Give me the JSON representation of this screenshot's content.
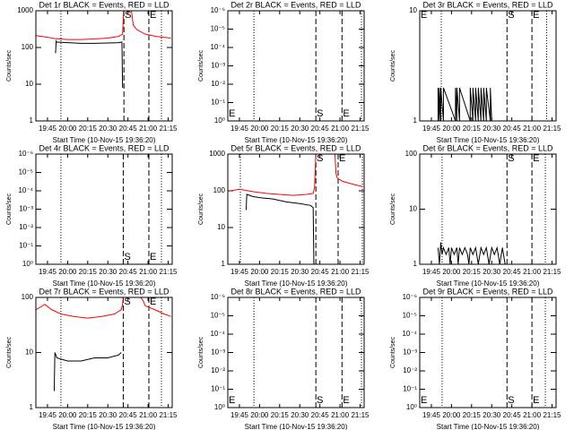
{
  "chart_data": [
    {
      "type": "line",
      "title": "Det 1r BLACK = Events, RED = LLD",
      "xlabel": "Start Time (10-Nov-15 19:36:20)",
      "ylabel": "Counts/sec",
      "log_y": true,
      "xlim": [
        1176.33,
        1278
      ],
      "xticks": [
        {
          "value": 1185,
          "label": "19:45"
        },
        {
          "value": 1200,
          "label": "20:00"
        },
        {
          "value": 1215,
          "label": "20:15"
        },
        {
          "value": 1230,
          "label": "20:30"
        },
        {
          "value": 1245,
          "label": "20:45"
        },
        {
          "value": 1260,
          "label": "21:00"
        },
        {
          "value": 1275,
          "label": "21:15"
        }
      ],
      "ylim": [
        1,
        1000
      ],
      "yticks": [
        1,
        10,
        100,
        1000
      ],
      "vlines": [
        {
          "x": 1195,
          "style": "dotted"
        },
        {
          "x": 1270,
          "style": "dotted"
        },
        {
          "x": 1242,
          "style": "dashed",
          "label": "S"
        },
        {
          "x": 1260.6,
          "style": "dashed",
          "label": "E"
        }
      ],
      "series": [
        {
          "color": "#ff0000",
          "x": [
            1176.5,
            1185,
            1190,
            1200,
            1210,
            1220,
            1230,
            1238,
            1241,
            1242,
            1247,
            1249,
            1252,
            1258,
            1266,
            1277
          ],
          "values": [
            210,
            190,
            175,
            165,
            165,
            170,
            180,
            200,
            230,
            1500,
            1500,
            400,
            300,
            230,
            200,
            180
          ]
        },
        {
          "color": "#000000",
          "x": [
            1191,
            1191.5,
            1192,
            1200,
            1210,
            1220,
            1230,
            1238,
            1240.5,
            1241
          ],
          "values": [
            70,
            150,
            140,
            135,
            130,
            130,
            132,
            135,
            140,
            8
          ]
        }
      ]
    },
    {
      "type": "line",
      "title": "Det 2r BLACK = Events, RED = LLD",
      "xlabel": "Start Time (10-Nov-15 19:36:20)",
      "ylabel": "Counts/sec",
      "log_y": true,
      "xlim": [
        1176.33,
        1278
      ],
      "xticks": [
        {
          "value": 1185,
          "label": "19:45"
        },
        {
          "value": 1200,
          "label": "20:00"
        },
        {
          "value": 1215,
          "label": "20:15"
        },
        {
          "value": 1230,
          "label": "20:30"
        },
        {
          "value": 1245,
          "label": "20:45"
        },
        {
          "value": 1260,
          "label": "21:00"
        },
        {
          "value": 1275,
          "label": "21:15"
        }
      ],
      "ylim": [
        1,
        1e-06
      ],
      "yticks": [
        {
          "value": 1,
          "label": "10⁰"
        },
        {
          "value": 0.1,
          "label": "10⁻¹"
        },
        {
          "value": 0.01,
          "label": "10⁻²"
        },
        {
          "value": 0.001,
          "label": "10⁻³"
        },
        {
          "value": 0.0001,
          "label": "10⁻⁴"
        },
        {
          "value": 1e-05,
          "label": "10⁻⁵"
        },
        {
          "value": 1e-06,
          "label": "10⁻⁶"
        }
      ],
      "vlines": [
        {
          "x": 1176.33,
          "style": "none",
          "label": "E"
        },
        {
          "x": 1195.8,
          "style": "dotted"
        },
        {
          "x": 1276,
          "style": "dotted"
        },
        {
          "x": 1242,
          "style": "dashed",
          "label": "S"
        },
        {
          "x": 1261.5,
          "style": "dashed",
          "label": "E"
        }
      ],
      "series": []
    },
    {
      "type": "line",
      "title": "Det 3r BLACK = Events, RED = LLD",
      "xlabel": "Start Time (10-Nov-15 19:36:20)",
      "ylabel": "Counts/sec",
      "log_y": true,
      "xlim": [
        1176.33,
        1278
      ],
      "xticks": [
        {
          "value": 1185,
          "label": "19:45"
        },
        {
          "value": 1200,
          "label": "20:00"
        },
        {
          "value": 1215,
          "label": "20:15"
        },
        {
          "value": 1230,
          "label": "20:30"
        },
        {
          "value": 1245,
          "label": "20:45"
        },
        {
          "value": 1260,
          "label": "21:00"
        },
        {
          "value": 1275,
          "label": "21:15"
        }
      ],
      "ylim": [
        1,
        10
      ],
      "yticks": [
        1,
        10
      ],
      "vlines": [
        {
          "x": 1176.33,
          "style": "none",
          "label": "E"
        },
        {
          "x": 1192.4,
          "style": "dotted"
        },
        {
          "x": 1271,
          "style": "dotted"
        },
        {
          "x": 1241.4,
          "style": "dashed",
          "label": "S"
        },
        {
          "x": 1260,
          "style": "dashed",
          "label": "E"
        }
      ],
      "series": [
        {
          "color": "#000000",
          "x": [
            1190,
            1190,
            1191,
            1191,
            1192,
            1192,
            1194,
            1194,
            1203,
            1203,
            1204,
            1204,
            1206,
            1206,
            1214,
            1214,
            1216,
            1216,
            1218,
            1218,
            1220,
            1220,
            1222,
            1222,
            1224,
            1224,
            1226,
            1226,
            1229,
            1229,
            1230
          ],
          "values": [
            1,
            2,
            1,
            2,
            1,
            2,
            1,
            2,
            1,
            2,
            1,
            2,
            1,
            2,
            1,
            2,
            1,
            2,
            1,
            2,
            1,
            2,
            1,
            2,
            1,
            2,
            1,
            2,
            1,
            2,
            1
          ]
        }
      ]
    },
    {
      "type": "line",
      "title": "Det 4r BLACK = Events, RED = LLD",
      "xlabel": "Start Time (10-Nov-15 19:36:20)",
      "ylabel": "Counts/sec",
      "log_y": true,
      "xlim": [
        1176.33,
        1278
      ],
      "xticks": [
        {
          "value": 1185,
          "label": "19:45"
        },
        {
          "value": 1200,
          "label": "20:00"
        },
        {
          "value": 1215,
          "label": "20:15"
        },
        {
          "value": 1230,
          "label": "20:30"
        },
        {
          "value": 1245,
          "label": "20:45"
        },
        {
          "value": 1260,
          "label": "21:00"
        },
        {
          "value": 1275,
          "label": "21:15"
        }
      ],
      "ylim": [
        1,
        1e-06
      ],
      "yticks": [
        {
          "value": 1,
          "label": "10⁰"
        },
        {
          "value": 0.1,
          "label": "10⁻¹"
        },
        {
          "value": 0.01,
          "label": "10⁻²"
        },
        {
          "value": 0.001,
          "label": "10⁻³"
        },
        {
          "value": 0.0001,
          "label": "10⁻⁴"
        },
        {
          "value": 1e-05,
          "label": "10⁻⁵"
        },
        {
          "value": 1e-06,
          "label": "10⁻⁶"
        }
      ],
      "vlines": [
        {
          "x": 1195,
          "style": "dotted"
        },
        {
          "x": 1270,
          "style": "dotted"
        },
        {
          "x": 1241.5,
          "style": "dashed",
          "label": "S"
        },
        {
          "x": 1260.6,
          "style": "dashed",
          "label": "E"
        }
      ],
      "series": []
    },
    {
      "type": "line",
      "title": "Det 5r BLACK = Events, RED = LLD",
      "xlabel": "Start Time (10-Nov-15 19:36:20)",
      "ylabel": "Counts/sec",
      "log_y": true,
      "xlim": [
        1176.33,
        1278
      ],
      "xticks": [
        {
          "value": 1185,
          "label": "19:45"
        },
        {
          "value": 1200,
          "label": "20:00"
        },
        {
          "value": 1215,
          "label": "20:15"
        },
        {
          "value": 1230,
          "label": "20:30"
        },
        {
          "value": 1245,
          "label": "20:45"
        },
        {
          "value": 1260,
          "label": "21:00"
        },
        {
          "value": 1275,
          "label": "21:15"
        }
      ],
      "ylim": [
        1,
        1000
      ],
      "yticks": [
        1,
        10,
        100,
        1000
      ],
      "vlines": [
        {
          "x": 1185.7,
          "style": "dotted"
        },
        {
          "x": 1276.7,
          "style": "dotted"
        },
        {
          "x": 1242,
          "style": "dashed",
          "label": "S"
        },
        {
          "x": 1258.6,
          "style": "dashed",
          "label": "E"
        }
      ],
      "series": [
        {
          "color": "#ff0000",
          "x": [
            1178,
            1185,
            1195,
            1205,
            1215,
            1225,
            1235,
            1240,
            1241,
            1242,
            1250,
            1256,
            1257,
            1258,
            1262,
            1270,
            1277
          ],
          "values": [
            100,
            110,
            95,
            85,
            80,
            75,
            80,
            85,
            120,
            1000,
            1000,
            1500,
            300,
            220,
            180,
            150,
            130
          ]
        },
        {
          "color": "#000000",
          "x": [
            1190,
            1190.5,
            1195,
            1200,
            1210,
            1220,
            1230,
            1238,
            1240,
            1240.5
          ],
          "values": [
            30,
            80,
            70,
            65,
            60,
            50,
            45,
            40,
            35,
            1
          ]
        }
      ]
    },
    {
      "type": "line",
      "title": "Det 6r BLACK = Events, RED = LLD",
      "xlabel": "Start Time (10-Nov-15 19:36:20)",
      "ylabel": "Counts/sec",
      "log_y": true,
      "xlim": [
        1176.33,
        1278
      ],
      "xticks": [
        {
          "value": 1185,
          "label": "19:45"
        },
        {
          "value": 1200,
          "label": "20:00"
        },
        {
          "value": 1215,
          "label": "20:15"
        },
        {
          "value": 1230,
          "label": "20:30"
        },
        {
          "value": 1245,
          "label": "20:45"
        },
        {
          "value": 1260,
          "label": "21:00"
        },
        {
          "value": 1275,
          "label": "21:15"
        }
      ],
      "ylim": [
        1,
        100
      ],
      "yticks": [
        1,
        10,
        100
      ],
      "vlines": [
        {
          "x": 1193,
          "style": "dotted"
        },
        {
          "x": 1270,
          "style": "dotted"
        },
        {
          "x": 1241.4,
          "style": "dashed",
          "label": "S"
        },
        {
          "x": 1260,
          "style": "dashed",
          "label": "E"
        }
      ],
      "series": [
        {
          "color": "#000000",
          "x": [
            1190,
            1191,
            1192,
            1193,
            1194,
            1196,
            1198,
            1199,
            1200,
            1202,
            1204,
            1205,
            1206,
            1208,
            1210,
            1212,
            1213,
            1214,
            1216,
            1218,
            1220,
            1222,
            1224,
            1226,
            1228,
            1230,
            1232,
            1234,
            1236,
            1238,
            1240
          ],
          "values": [
            2,
            1,
            2.5,
            1.5,
            2,
            1.5,
            2,
            1,
            2,
            1.5,
            2,
            1,
            2,
            1.5,
            2,
            1.5,
            1,
            2,
            1.5,
            2,
            1,
            2,
            1.5,
            2,
            1,
            2,
            1.5,
            2,
            1,
            2,
            1
          ]
        }
      ]
    },
    {
      "type": "line",
      "title": "Det 7r BLACK = Events, RED = LLD",
      "xlabel": "Start Time (10-Nov-15 19:36:20)",
      "ylabel": "Counts/sec",
      "log_y": true,
      "xlim": [
        1176.33,
        1278
      ],
      "xticks": [
        {
          "value": 1185,
          "label": "19:45"
        },
        {
          "value": 1200,
          "label": "20:00"
        },
        {
          "value": 1215,
          "label": "20:15"
        },
        {
          "value": 1230,
          "label": "20:30"
        },
        {
          "value": 1245,
          "label": "20:45"
        },
        {
          "value": 1260,
          "label": "21:00"
        },
        {
          "value": 1275,
          "label": "21:15"
        }
      ],
      "ylim": [
        1,
        100
      ],
      "yticks": [
        1,
        10,
        100
      ],
      "vlines": [
        {
          "x": 1195,
          "style": "dotted"
        },
        {
          "x": 1270,
          "style": "dotted"
        },
        {
          "x": 1241.5,
          "style": "dashed",
          "label": "S"
        },
        {
          "x": 1260.6,
          "style": "dashed",
          "label": "E"
        }
      ],
      "series": [
        {
          "color": "#ff0000",
          "x": [
            1176.5,
            1183,
            1188,
            1195,
            1205,
            1215,
            1225,
            1235,
            1240,
            1241,
            1242,
            1248,
            1256,
            1258,
            1265,
            1272,
            1277
          ],
          "values": [
            60,
            75,
            60,
            50,
            45,
            42,
            45,
            50,
            60,
            75,
            150,
            150,
            90,
            70,
            60,
            50,
            45
          ]
        },
        {
          "color": "#000000",
          "x": [
            1190,
            1190.5,
            1192,
            1200,
            1210,
            1220,
            1230,
            1238,
            1240
          ],
          "values": [
            2,
            10,
            8,
            7,
            7,
            8,
            8,
            9,
            10
          ]
        }
      ]
    },
    {
      "type": "line",
      "title": "Det 8r BLACK = Events, RED = LLD",
      "xlabel": "Start Time (10-Nov-15 19:36:20)",
      "ylabel": "Counts/sec",
      "log_y": true,
      "xlim": [
        1176.33,
        1278
      ],
      "xticks": [
        {
          "value": 1185,
          "label": "19:45"
        },
        {
          "value": 1200,
          "label": "20:00"
        },
        {
          "value": 1215,
          "label": "20:15"
        },
        {
          "value": 1230,
          "label": "20:30"
        },
        {
          "value": 1245,
          "label": "20:45"
        },
        {
          "value": 1260,
          "label": "21:00"
        },
        {
          "value": 1275,
          "label": "21:15"
        }
      ],
      "ylim": [
        1,
        1e-06
      ],
      "yticks": [
        {
          "value": 1,
          "label": "10⁰"
        },
        {
          "value": 0.1,
          "label": "10⁻¹"
        },
        {
          "value": 0.01,
          "label": "10⁻²"
        },
        {
          "value": 0.001,
          "label": "10⁻³"
        },
        {
          "value": 0.0001,
          "label": "10⁻⁴"
        },
        {
          "value": 1e-05,
          "label": "10⁻⁵"
        },
        {
          "value": 1e-06,
          "label": "10⁻⁶"
        }
      ],
      "vlines": [
        {
          "x": 1176.33,
          "style": "none",
          "label": "E"
        },
        {
          "x": 1195.8,
          "style": "dotted"
        },
        {
          "x": 1276,
          "style": "dotted"
        },
        {
          "x": 1242,
          "style": "dashed",
          "label": "S"
        },
        {
          "x": 1261.5,
          "style": "dashed",
          "label": "E"
        }
      ],
      "series": []
    },
    {
      "type": "line",
      "title": "Det 9r BLACK = Events, RED = LLD",
      "xlabel": "Start Time (10-Nov-15 19:36:20)",
      "ylabel": "Counts/sec",
      "log_y": true,
      "xlim": [
        1176.33,
        1278
      ],
      "xticks": [
        {
          "value": 1185,
          "label": "19:45"
        },
        {
          "value": 1200,
          "label": "20:00"
        },
        {
          "value": 1215,
          "label": "20:15"
        },
        {
          "value": 1230,
          "label": "20:30"
        },
        {
          "value": 1245,
          "label": "20:45"
        },
        {
          "value": 1260,
          "label": "21:00"
        },
        {
          "value": 1275,
          "label": "21:15"
        }
      ],
      "ylim": [
        1,
        1e-06
      ],
      "yticks": [
        {
          "value": 1,
          "label": "10⁰"
        },
        {
          "value": 0.1,
          "label": "10⁻¹"
        },
        {
          "value": 0.01,
          "label": "10⁻²"
        },
        {
          "value": 0.001,
          "label": "10⁻³"
        },
        {
          "value": 0.0001,
          "label": "10⁻⁴"
        },
        {
          "value": 1e-05,
          "label": "10⁻⁵"
        },
        {
          "value": 1e-06,
          "label": "10⁻⁶"
        }
      ],
      "vlines": [
        {
          "x": 1176.33,
          "style": "none",
          "label": "E"
        },
        {
          "x": 1193,
          "style": "dotted"
        },
        {
          "x": 1270,
          "style": "dotted"
        },
        {
          "x": 1241.4,
          "style": "dashed",
          "label": "S"
        },
        {
          "x": 1260,
          "style": "dashed",
          "label": "E"
        }
      ],
      "series": []
    }
  ]
}
